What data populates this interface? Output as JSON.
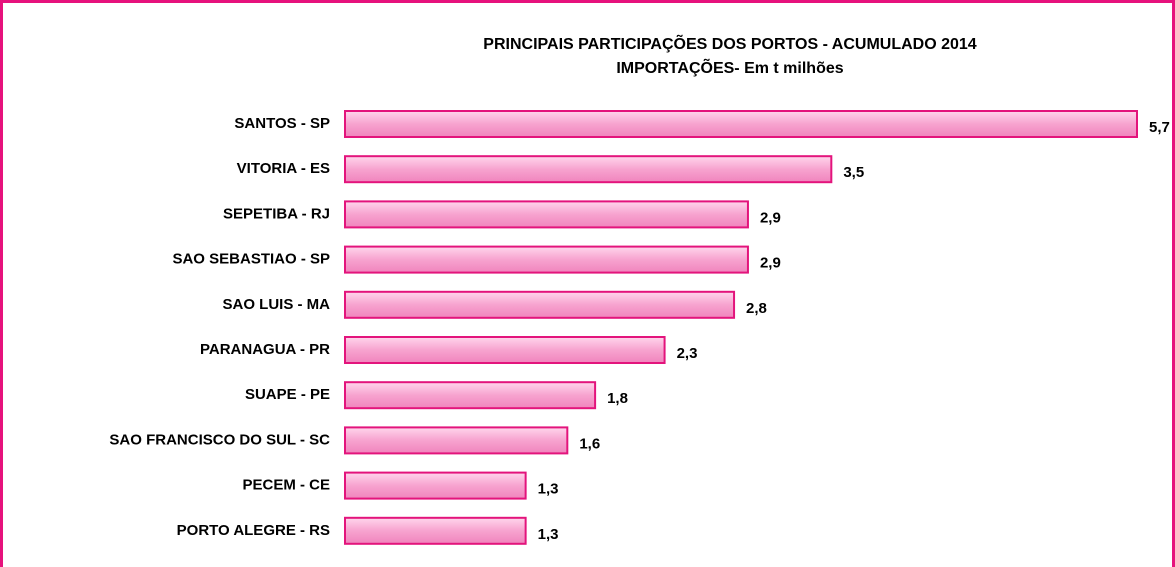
{
  "chart_data": {
    "type": "bar",
    "orientation": "horizontal",
    "title": "PRINCIPAIS PARTICIPAÇÕES DOS PORTOS - ACUMULADO 2014",
    "subtitle": "IMPORTAÇÕES- Em t milhões",
    "categories": [
      "SANTOS - SP",
      "VITORIA - ES",
      "SEPETIBA - RJ",
      "SAO SEBASTIAO - SP",
      "SAO LUIS - MA",
      "PARANAGUA - PR",
      "SUAPE - PE",
      "SAO FRANCISCO DO SUL - SC",
      "PECEM - CE",
      "PORTO ALEGRE - RS"
    ],
    "values": [
      5.7,
      3.5,
      2.9,
      2.9,
      2.8,
      2.3,
      1.8,
      1.6,
      1.3,
      1.3
    ],
    "value_labels": [
      "5,7",
      "3,5",
      "2,9",
      "2,9",
      "2,8",
      "2,3",
      "1,8",
      "1,6",
      "1,3",
      "1,3"
    ],
    "color": "#f7a3cf",
    "edge_color": "#e3147c"
  }
}
